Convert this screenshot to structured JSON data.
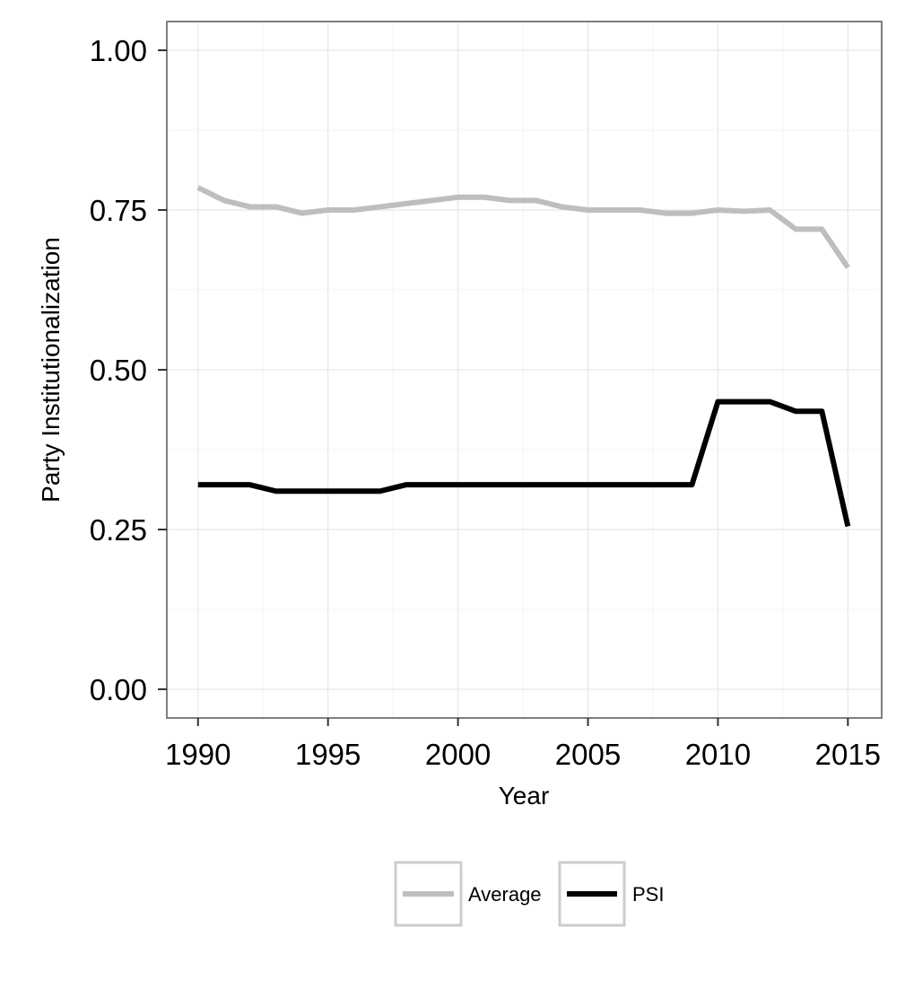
{
  "chart_data": {
    "type": "line",
    "xlabel": "Year",
    "ylabel": "Party Institutionalization",
    "xlim": [
      1988.8,
      2016.3
    ],
    "ylim": [
      -0.045,
      1.045
    ],
    "xticks": [
      1990,
      1995,
      2000,
      2005,
      2010,
      2015
    ],
    "yticks": [
      0,
      0.25,
      0.5,
      0.75,
      1
    ],
    "xtick_labels": [
      "1990",
      "1995",
      "2000",
      "2005",
      "2010",
      "2015"
    ],
    "ytick_labels": [
      "0.00",
      "0.25",
      "0.50",
      "0.75",
      "1.00"
    ],
    "grid": true,
    "legend_position": "bottom",
    "series": [
      {
        "name": "Average",
        "color": "#bebebe",
        "x": [
          1990,
          1991,
          1992,
          1993,
          1994,
          1995,
          1996,
          1997,
          1998,
          1999,
          2000,
          2001,
          2002,
          2003,
          2004,
          2005,
          2006,
          2007,
          2008,
          2009,
          2010,
          2011,
          2012,
          2013,
          2014,
          2015
        ],
        "values": [
          0.785,
          0.765,
          0.755,
          0.755,
          0.745,
          0.75,
          0.75,
          0.755,
          0.76,
          0.765,
          0.77,
          0.77,
          0.765,
          0.765,
          0.755,
          0.75,
          0.75,
          0.75,
          0.745,
          0.745,
          0.75,
          0.748,
          0.75,
          0.72,
          0.72,
          0.66
        ]
      },
      {
        "name": "PSI",
        "color": "#000000",
        "x": [
          1990,
          1991,
          1992,
          1993,
          1994,
          1995,
          1996,
          1997,
          1998,
          1999,
          2000,
          2001,
          2002,
          2003,
          2004,
          2005,
          2006,
          2007,
          2008,
          2009,
          2010,
          2011,
          2012,
          2013,
          2014,
          2015
        ],
        "values": [
          0.32,
          0.32,
          0.32,
          0.31,
          0.31,
          0.31,
          0.31,
          0.31,
          0.32,
          0.32,
          0.32,
          0.32,
          0.32,
          0.32,
          0.32,
          0.32,
          0.32,
          0.32,
          0.32,
          0.32,
          0.45,
          0.45,
          0.45,
          0.435,
          0.435,
          0.255
        ]
      }
    ]
  }
}
